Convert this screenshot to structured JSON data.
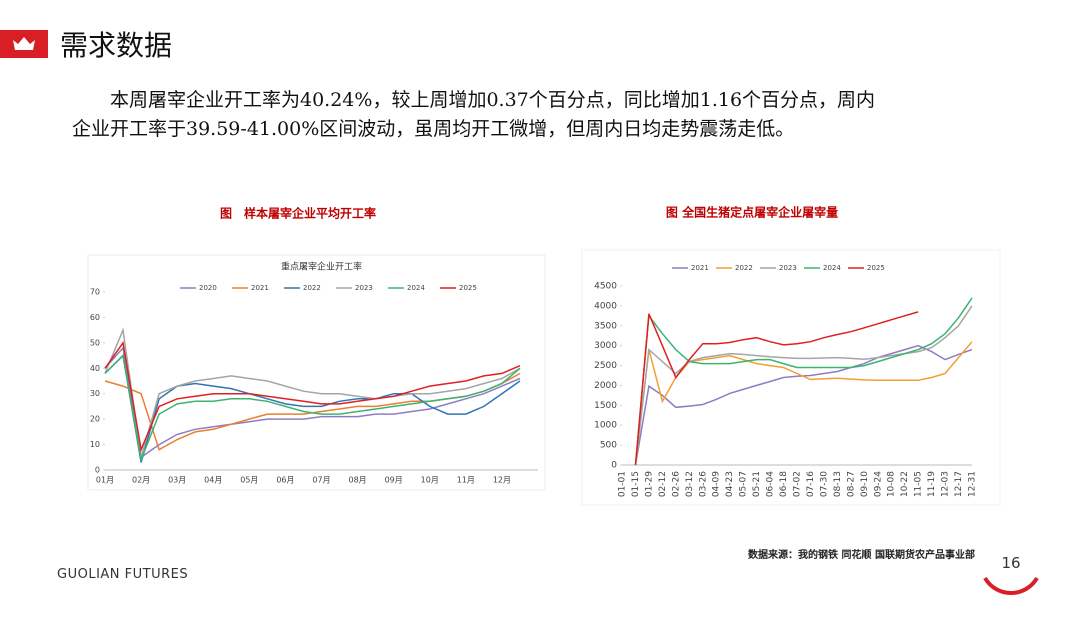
{
  "header": {
    "title": "需求数据"
  },
  "body": {
    "text_lines": [
      "本周屠宰企业开工率为40.24%，较上周增加0.37个百分点，同比增加1.16个百分点，周内",
      "企业开工率于39.59-41.00%区间波动，虽周均开工微增，但周内日均走势震荡走低。"
    ]
  },
  "chart_data": [
    {
      "type": "line",
      "caption": "图　样本屠宰企业平均开工率",
      "title": "重点屠宰企业开工率",
      "categories": [
        "01月",
        null,
        "02月",
        null,
        "03月",
        null,
        "04月",
        null,
        "05月",
        null,
        "06月",
        null,
        "07月",
        null,
        "08月",
        null,
        "09月",
        null,
        "10月",
        null,
        "11月",
        null,
        "12月",
        null
      ],
      "ylim": [
        0,
        70
      ],
      "yticks": [
        0,
        10,
        20,
        30,
        40,
        50,
        60,
        70
      ],
      "series": [
        {
          "name": "2020",
          "color": "#8e7cc3",
          "values": [
            40,
            48,
            5,
            10,
            14,
            16,
            17,
            18,
            19,
            20,
            20,
            20,
            21,
            21,
            21,
            22,
            22,
            23,
            24,
            26,
            28,
            30,
            33,
            36
          ]
        },
        {
          "name": "2021",
          "color": "#ed7d31",
          "values": [
            35,
            33,
            30,
            8,
            12,
            15,
            16,
            18,
            20,
            22,
            22,
            22,
            23,
            24,
            25,
            25,
            26,
            27,
            27,
            28,
            29,
            31,
            34,
            38
          ]
        },
        {
          "name": "2022",
          "color": "#2e75b6",
          "values": [
            38,
            45,
            3,
            28,
            33,
            34,
            33,
            32,
            30,
            28,
            26,
            25,
            25,
            27,
            28,
            28,
            30,
            30,
            25,
            22,
            22,
            25,
            30,
            35
          ]
        },
        {
          "name": "2023",
          "color": "#a5a5a5",
          "values": [
            38,
            55,
            5,
            30,
            33,
            35,
            36,
            37,
            36,
            35,
            33,
            31,
            30,
            30,
            29,
            28,
            29,
            30,
            30,
            31,
            32,
            34,
            36,
            40
          ]
        },
        {
          "name": "2024",
          "color": "#3cb371",
          "values": [
            38,
            45,
            4,
            22,
            26,
            27,
            27,
            28,
            28,
            27,
            25,
            23,
            22,
            22,
            23,
            24,
            25,
            26,
            27,
            28,
            29,
            31,
            34,
            40
          ]
        },
        {
          "name": "2025",
          "color": "#e02020",
          "values": [
            40,
            50,
            8,
            25,
            28,
            29,
            30,
            30,
            30,
            29,
            28,
            27,
            26,
            26,
            27,
            28,
            29,
            31,
            33,
            34,
            35,
            37,
            38,
            41
          ]
        }
      ]
    },
    {
      "type": "line",
      "caption": "图 全国生猪定点屠宰企业屠宰量",
      "categories": [
        "01-01",
        "01-15",
        "01-29",
        "02-12",
        "02-26",
        "03-12",
        "03-26",
        "04-09",
        "04-23",
        "05-07",
        "05-21",
        "06-04",
        "06-18",
        "07-02",
        "07-16",
        "07-30",
        "08-13",
        "08-27",
        "09-10",
        "09-24",
        "10-08",
        "10-22",
        "11-05",
        "11-19",
        "12-03",
        "12-17",
        "12-31"
      ],
      "ylim": [
        0,
        4500
      ],
      "yticks": [
        0,
        500,
        1000,
        1500,
        2000,
        2500,
        3000,
        3500,
        4000,
        4500
      ],
      "series": [
        {
          "name": "2021",
          "color": "#8e7cc3",
          "values": [
            null,
            0,
            1980,
            1750,
            1450,
            1480,
            1520,
            1650,
            1800,
            1900,
            2000,
            2100,
            2200,
            2230,
            2250,
            2300,
            2350,
            2450,
            2550,
            2700,
            2800,
            2900,
            3000,
            2850,
            2650,
            2780,
            2900
          ]
        },
        {
          "name": "2022",
          "color": "#f0a030",
          "values": [
            null,
            0,
            2900,
            1600,
            2200,
            2600,
            2650,
            2700,
            2750,
            2650,
            2550,
            2500,
            2450,
            2300,
            2150,
            2170,
            2180,
            2160,
            2140,
            2130,
            2130,
            2130,
            2130,
            2200,
            2300,
            2700,
            3100
          ]
        },
        {
          "name": "2023",
          "color": "#a5a5a5",
          "values": [
            null,
            0,
            2900,
            2600,
            2300,
            2600,
            2700,
            2750,
            2800,
            2780,
            2750,
            2720,
            2700,
            2680,
            2680,
            2690,
            2700,
            2680,
            2660,
            2700,
            2750,
            2800,
            2850,
            2950,
            3200,
            3500,
            4000
          ]
        },
        {
          "name": "2024",
          "color": "#3cb371",
          "values": [
            null,
            0,
            3750,
            3300,
            2900,
            2600,
            2550,
            2550,
            2550,
            2600,
            2650,
            2650,
            2550,
            2450,
            2450,
            2450,
            2450,
            2450,
            2500,
            2600,
            2700,
            2800,
            2900,
            3050,
            3300,
            3700,
            4200
          ]
        },
        {
          "name": "2025",
          "color": "#e02020",
          "values": [
            null,
            0,
            3800,
            3000,
            2200,
            2650,
            3050,
            3050,
            3080,
            3150,
            3200,
            3100,
            3020,
            3050,
            3100,
            3200,
            3280,
            3350,
            3450,
            3550,
            3650,
            3750,
            3850,
            null,
            null,
            null,
            null
          ]
        }
      ]
    }
  ],
  "footer": {
    "source": "数据来源：我的钢铁 同花顺 国联期货农产品事业部",
    "brand": "GUOLIAN FUTURES",
    "page": "16"
  }
}
